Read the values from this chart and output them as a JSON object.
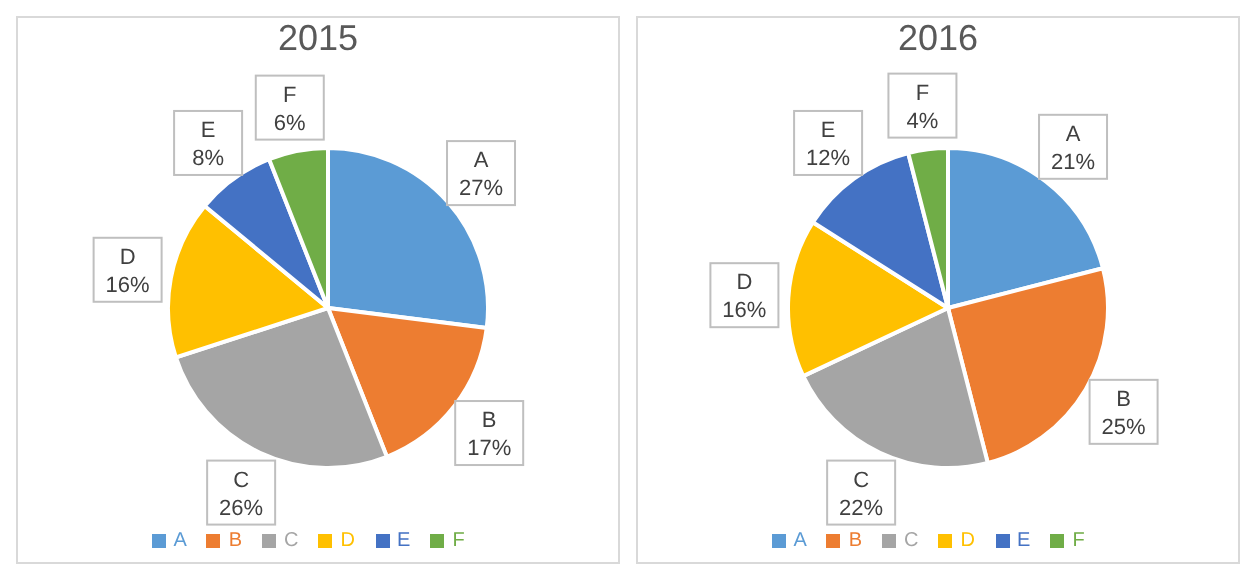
{
  "chart_data": [
    {
      "type": "pie",
      "title": "2015",
      "categories": [
        "A",
        "B",
        "C",
        "D",
        "E",
        "F"
      ],
      "values": [
        27,
        17,
        26,
        16,
        8,
        6
      ],
      "colors": [
        "#5b9bd5",
        "#ed7d31",
        "#a5a5a5",
        "#ffc000",
        "#4472c4",
        "#70ad47"
      ],
      "value_labels": [
        "27%",
        "17%",
        "26%",
        "16%",
        "8%",
        "6%"
      ],
      "legend": "bottom"
    },
    {
      "type": "pie",
      "title": "2016",
      "categories": [
        "A",
        "B",
        "C",
        "D",
        "E",
        "F"
      ],
      "values": [
        21,
        25,
        22,
        16,
        12,
        4
      ],
      "colors": [
        "#5b9bd5",
        "#ed7d31",
        "#a5a5a5",
        "#ffc000",
        "#4472c4",
        "#70ad47"
      ],
      "value_labels": [
        "21%",
        "25%",
        "22%",
        "16%",
        "12%",
        "4%"
      ],
      "legend": "bottom"
    }
  ]
}
